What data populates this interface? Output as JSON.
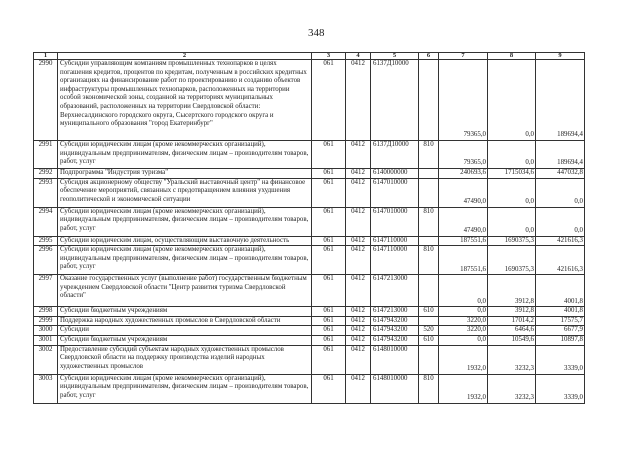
{
  "page_number": "348",
  "header": [
    "1",
    "2",
    "3",
    "4",
    "5",
    "6",
    "7",
    "8",
    "9"
  ],
  "rows": [
    {
      "c1": "2990",
      "c2": "Субсидии управляющим компаниям промышленных технопарков в целях погашения кредитов, процентов по кредитам, полученным в российских кредитных организациях на финансирование работ по проектированию и созданию объектов инфраструктуры промышленных технопарков, расположенных на территории особой экономической зоны, созданной на территориях муниципальных образований, расположенных на территории Свердловской области: Верхнесалдинского городского округа, Сысертского городского округа и муниципального образования \"город Екатеринбург\"",
      "c3": "061",
      "c4": "0412",
      "c5": "6137Д10000",
      "c6": "",
      "c7": "79365,0",
      "c8": "0,0",
      "c9": "189694,4"
    },
    {
      "c1": "2991",
      "c2": "Субсидии юридическим лицам (кроме некоммерческих организаций), индивидуальным предпринимателям, физическим лицам – производителям товаров, работ, услуг",
      "c3": "061",
      "c4": "0412",
      "c5": "6137Д10000",
      "c6": "810",
      "c7": "79365,0",
      "c8": "0,0",
      "c9": "189694,4"
    },
    {
      "c1": "2992",
      "c2": "Подпрограмма \"Индустрия туризма\"",
      "c3": "061",
      "c4": "0412",
      "c5": "6140000000",
      "c6": "",
      "c7": "240693,6",
      "c8": "1715034,6",
      "c9": "447032,8"
    },
    {
      "c1": "2993",
      "c2": "Субсидия акционерному обществу \"Уральский выставочный центр\" на финансовое обеспечение мероприятий, связанных с предотвращением влияния ухудшения геополитической и экономической ситуации",
      "c3": "061",
      "c4": "0412",
      "c5": "6147010000",
      "c6": "",
      "c7": "47490,0",
      "c8": "0,0",
      "c9": "0,0"
    },
    {
      "c1": "2994",
      "c2": "Субсидии юридическим лицам (кроме некоммерческих организаций), индивидуальным предпринимателям, физическим лицам – производителям товаров, работ, услуг",
      "c3": "061",
      "c4": "0412",
      "c5": "6147010000",
      "c6": "810",
      "c7": "47490,0",
      "c8": "0,0",
      "c9": "0,0"
    },
    {
      "c1": "2995",
      "c2": "Субсидии юридическим лицам, осуществляющим выставочную деятельность",
      "c3": "061",
      "c4": "0412",
      "c5": "6147110000",
      "c6": "",
      "c7": "187551,6",
      "c8": "1690375,3",
      "c9": "421616,3"
    },
    {
      "c1": "2996",
      "c2": "Субсидии юридическим лицам (кроме некоммерческих организаций), индивидуальным предпринимателям, физическим лицам – производителям товаров, работ, услуг",
      "c3": "061",
      "c4": "0412",
      "c5": "6147110000",
      "c6": "810",
      "c7": "187551,6",
      "c8": "1690375,3",
      "c9": "421616,3"
    },
    {
      "c1": "2997",
      "c2": "Оказание государственных услуг (выполнение работ) государственным бюджетным учреждением Свердловской области \"Центр развития туризма Свердловской области\"",
      "c3": "061",
      "c4": "0412",
      "c5": "6147213000",
      "c6": "",
      "c7": "0,0",
      "c8": "3912,8",
      "c9": "4001,8"
    },
    {
      "c1": "2998",
      "c2": "Субсидии бюджетным учреждениям",
      "c3": "061",
      "c4": "0412",
      "c5": "6147213000",
      "c6": "610",
      "c7": "0,0",
      "c8": "3912,8",
      "c9": "4001,8"
    },
    {
      "c1": "2999",
      "c2": "Поддержка народных художественных промыслов в Свердловской области",
      "c3": "061",
      "c4": "0412",
      "c5": "6147943200",
      "c6": "",
      "c7": "3220,0",
      "c8": "17014,2",
      "c9": "17575,7"
    },
    {
      "c1": "3000",
      "c2": "Субсидии",
      "c3": "061",
      "c4": "0412",
      "c5": "6147943200",
      "c6": "520",
      "c7": "3220,0",
      "c8": "6464,6",
      "c9": "6677,9"
    },
    {
      "c1": "3001",
      "c2": "Субсидии бюджетным учреждениям",
      "c3": "061",
      "c4": "0412",
      "c5": "6147943200",
      "c6": "610",
      "c7": "0,0",
      "c8": "10549,6",
      "c9": "10897,8"
    },
    {
      "c1": "3002",
      "c2": "Предоставление субсидий субъектам народных художественных промыслов Свердловской области на поддержку производства изделий народных художественных промыслов",
      "c3": "061",
      "c4": "0412",
      "c5": "6148010000",
      "c6": "",
      "c7": "1932,0",
      "c8": "3232,3",
      "c9": "3339,0"
    },
    {
      "c1": "3003",
      "c2": "Субсидии юридическим лицам (кроме некоммерческих организаций), индивидуальным предпринимателям, физическим лицам – производителям товаров, работ, услуг",
      "c3": "061",
      "c4": "0412",
      "c5": "6148010000",
      "c6": "810",
      "c7": "1932,0",
      "c8": "3232,3",
      "c9": "3339,0"
    }
  ]
}
